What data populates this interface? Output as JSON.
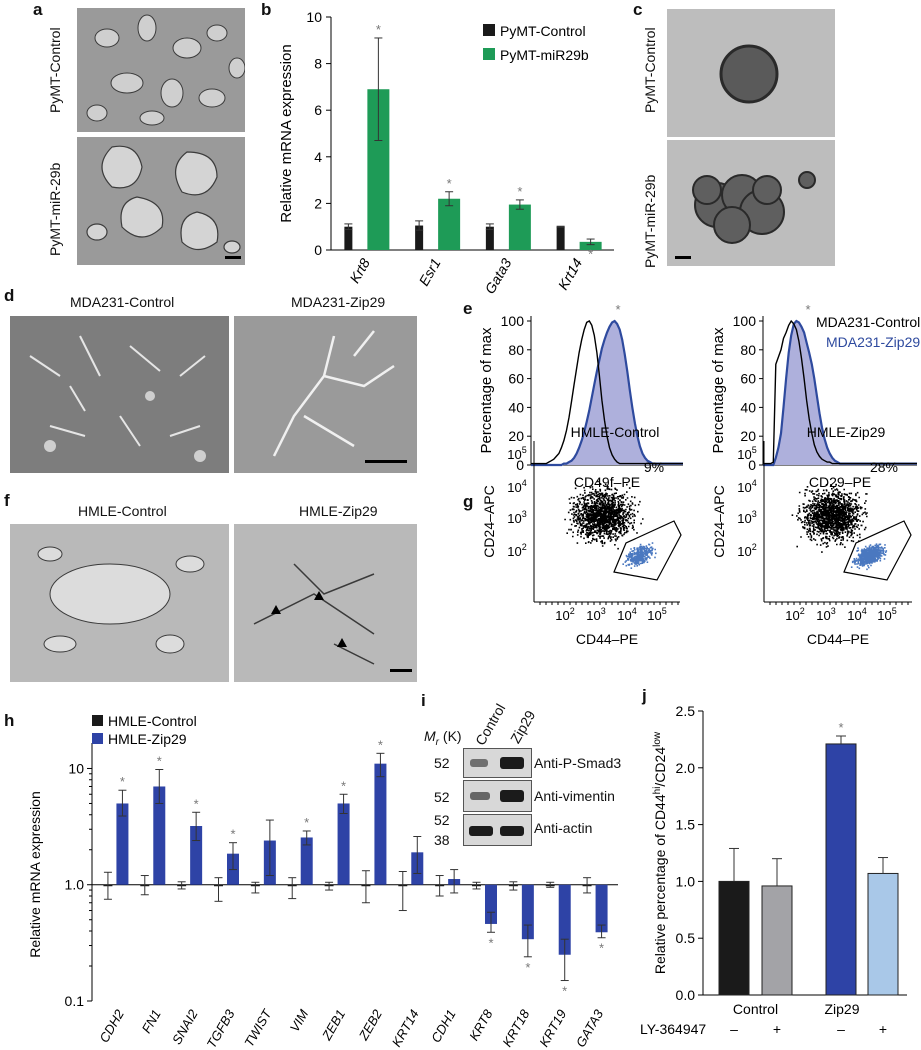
{
  "panels": {
    "a": {
      "label": "a",
      "rows": [
        "PyMT-Control",
        "PyMT-miR-29b"
      ]
    },
    "b": {
      "label": "b"
    },
    "c": {
      "label": "c",
      "rows": [
        "PyMT-Control",
        "PyMT-miR-29b"
      ]
    },
    "d": {
      "label": "d",
      "titles": [
        "MDA231-Control",
        "MDA231-Zip29"
      ]
    },
    "e": {
      "label": "e"
    },
    "f": {
      "label": "f",
      "titles": [
        "HMLE-Control",
        "HMLE-Zip29"
      ]
    },
    "g": {
      "label": "g"
    },
    "h": {
      "label": "h"
    },
    "i": {
      "label": "i",
      "lanes": [
        "Control",
        "Zip29"
      ],
      "mr_label": "M",
      "mr_sub": "r",
      "mr_unit": " (K)",
      "markers": [
        "52",
        "52",
        "52",
        "38"
      ],
      "antibodies": [
        "Anti-P-Smad3",
        "Anti-vimentin",
        "Anti-actin"
      ]
    },
    "j": {
      "label": "j"
    }
  },
  "chart_data": [
    {
      "id": "b",
      "type": "bar",
      "ylabel": "Relative mRNA expression",
      "ylim": [
        0,
        10
      ],
      "yticks": [
        0,
        2,
        4,
        6,
        8,
        10
      ],
      "categories": [
        "Krt8",
        "Esr1",
        "Gata3",
        "Krt14"
      ],
      "series": [
        {
          "name": "PyMT-Control",
          "color": "#1a1a1a",
          "values": [
            1.0,
            1.05,
            1.0,
            1.0
          ],
          "errors": [
            0.12,
            0.2,
            0.12,
            0.02
          ]
        },
        {
          "name": "PyMT-miR29b",
          "color": "#1e9b57",
          "values": [
            6.9,
            2.2,
            1.95,
            0.35
          ],
          "errors": [
            2.2,
            0.3,
            0.2,
            0.12
          ]
        }
      ],
      "significance": [
        "*",
        "*",
        "*",
        "*"
      ],
      "legend_position": "top-right"
    },
    {
      "id": "e1",
      "type": "area",
      "ylabel": "Percentage of max",
      "xlabel": "CD49f–PE",
      "ylim": [
        0,
        100
      ],
      "yticks": [
        0,
        20,
        40,
        60,
        80,
        100
      ],
      "series": [
        {
          "name": "MDA231-Control",
          "color": "#000000",
          "fill": false,
          "y": [
            1,
            1,
            1,
            1,
            1,
            1,
            1,
            2,
            3,
            4,
            6,
            8,
            12,
            17,
            24,
            33,
            44,
            56,
            67,
            78,
            87,
            94,
            99,
            100,
            97,
            90,
            78,
            62,
            45,
            31,
            20,
            12,
            7,
            4,
            2,
            1,
            1,
            1,
            1,
            1,
            1,
            1,
            1,
            1,
            1,
            1,
            1,
            1,
            1,
            1,
            1,
            1,
            1,
            1,
            1,
            1,
            1,
            1,
            1,
            1,
            1
          ]
        },
        {
          "name": "MDA231-Zip29",
          "color": "#2e4a9e",
          "fill": "#aeb0dc",
          "y": [
            0,
            0,
            0,
            0,
            0,
            0,
            0,
            0,
            0,
            0,
            0,
            0,
            0,
            1,
            1,
            2,
            3,
            5,
            8,
            12,
            17,
            23,
            30,
            38,
            47,
            56,
            65,
            73,
            81,
            87,
            92,
            96,
            99,
            100,
            98,
            94,
            87,
            77,
            65,
            52,
            40,
            29,
            20,
            13,
            8,
            5,
            3,
            2,
            1,
            1,
            1,
            1,
            1,
            1,
            1,
            1,
            1,
            1,
            1,
            1,
            1
          ]
        }
      ],
      "annotations": [
        "*"
      ]
    },
    {
      "id": "e2",
      "type": "area",
      "ylabel": "Percentage of max",
      "xlabel": "CD29–PE",
      "ylim": [
        0,
        100
      ],
      "yticks": [
        0,
        20,
        40,
        60,
        80,
        100
      ],
      "series": [
        {
          "name": "MDA231-Control",
          "color": "#000000",
          "fill": false,
          "y": [
            1,
            1,
            1,
            1,
            2,
            70,
            75,
            80,
            88,
            92,
            97,
            100,
            98,
            94,
            86,
            74,
            60,
            45,
            32,
            22,
            14,
            9,
            6,
            4,
            3,
            2,
            2,
            1,
            1,
            1,
            1,
            1,
            1,
            1,
            1,
            1,
            1,
            1,
            1,
            1,
            1,
            1,
            1,
            1,
            1,
            1,
            1,
            1,
            1,
            1,
            1,
            1,
            1,
            1,
            1,
            1,
            1,
            1,
            1,
            1,
            1
          ]
        },
        {
          "name": "MDA231-Zip29",
          "color": "#2e4a9e",
          "fill": "#aeb0dc",
          "y": [
            0,
            0,
            0,
            0,
            0,
            5,
            12,
            22,
            40,
            60,
            78,
            90,
            98,
            100,
            99,
            96,
            92,
            85,
            78,
            70,
            60,
            48,
            36,
            26,
            18,
            12,
            8,
            5,
            3,
            2,
            1,
            1,
            1,
            1,
            1,
            1,
            1,
            1,
            1,
            1,
            1,
            1,
            1,
            1,
            1,
            1,
            1,
            1,
            1,
            1,
            1,
            1,
            1,
            1,
            1,
            1,
            1,
            1,
            1,
            1,
            1
          ]
        }
      ],
      "legend": [
        "MDA231-Control",
        "MDA231-Zip29"
      ],
      "annotations": [
        "*"
      ]
    },
    {
      "id": "g1",
      "type": "scatter",
      "title": "HMLE-Control",
      "xlabel": "CD44–PE",
      "ylabel": "CD24–APC",
      "xticks": [
        "10^2",
        "10^3",
        "10^4",
        "10^5"
      ],
      "yticks": [
        "10^2",
        "10^3",
        "10^4",
        "10^5"
      ],
      "gate_percent": "9%"
    },
    {
      "id": "g2",
      "type": "scatter",
      "title": "HMLE-Zip29",
      "xlabel": "CD44–PE",
      "ylabel": "CD24–APC",
      "xticks": [
        "10^2",
        "10^3",
        "10^4",
        "10^5"
      ],
      "yticks": [
        "10^2",
        "10^3",
        "10^4",
        "10^5"
      ],
      "gate_percent": "28%"
    },
    {
      "id": "h",
      "type": "bar",
      "scale": "log",
      "ylabel": "Relative mRNA expression",
      "ylim": [
        0.1,
        15
      ],
      "yticks": [
        "0.1",
        "1.0",
        "10"
      ],
      "categories": [
        "CDH2",
        "FN1",
        "SNAI2",
        "TGFB3",
        "TWIST",
        "VIM",
        "ZEB1",
        "ZEB2",
        "KRT14",
        "CDH1",
        "KRT8",
        "KRT18",
        "KRT19",
        "GATA3"
      ],
      "series": [
        {
          "name": "HMLE-Control",
          "color": "#1a1a1a",
          "values": [
            1.0,
            1.0,
            1.0,
            1.0,
            1.0,
            1.0,
            1.0,
            1.0,
            1.0,
            1.0,
            1.0,
            1.0,
            1.0,
            1.0
          ],
          "err_hi": [
            1.28,
            1.2,
            1.06,
            1.15,
            1.05,
            1.15,
            1.05,
            1.32,
            1.3,
            1.2,
            1.05,
            1.06,
            1.05,
            1.15
          ],
          "err_lo": [
            0.75,
            0.82,
            0.92,
            0.72,
            0.85,
            0.76,
            0.9,
            0.7,
            0.6,
            0.8,
            0.92,
            0.9,
            0.95,
            0.85
          ]
        },
        {
          "name": "HMLE-Zip29",
          "color": "#2e43a6",
          "values": [
            5.0,
            7.0,
            3.2,
            1.85,
            2.4,
            2.55,
            5.0,
            11.0,
            1.9,
            1.12,
            0.46,
            0.34,
            0.25,
            0.39
          ],
          "err_hi": [
            6.5,
            9.8,
            4.2,
            2.3,
            3.6,
            2.9,
            6.0,
            13.5,
            2.6,
            1.35,
            0.58,
            0.45,
            0.34,
            0.45
          ],
          "err_lo": [
            3.9,
            5.0,
            2.4,
            1.35,
            1.2,
            2.2,
            4.1,
            8.5,
            1.25,
            0.85,
            0.39,
            0.24,
            0.15,
            0.35
          ]
        }
      ],
      "significance": [
        "*",
        "*",
        "*",
        "*",
        "",
        "*",
        "*",
        "*",
        "",
        "",
        "*",
        "*",
        "*",
        "*"
      ],
      "legend_position": "top-left"
    },
    {
      "id": "j",
      "type": "bar",
      "ylabel": "Relative percentage of CD44hi/CD24low",
      "ylim": [
        0,
        2.5
      ],
      "yticks": [
        "0.0",
        "0.5",
        "1.0",
        "1.5",
        "2.0",
        "2.5"
      ],
      "groups": [
        "Control",
        "Zip29"
      ],
      "treatment_label": "LY-364947",
      "treatment": [
        "–",
        "+",
        "–",
        "+"
      ],
      "values": [
        1.0,
        0.96,
        2.21,
        1.07
      ],
      "errors": [
        0.29,
        0.24,
        0.07,
        0.14
      ],
      "colors": [
        "#1a1a1a",
        "#a3a3a7",
        "#2e43a6",
        "#a9c8e8"
      ],
      "significance": [
        "",
        "",
        "*",
        ""
      ]
    }
  ]
}
